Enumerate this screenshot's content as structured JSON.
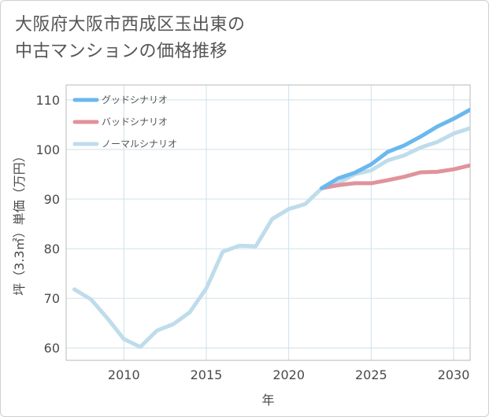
{
  "title_lines": [
    "大阪府大阪市西成区玉出東の",
    "中古マンションの価格推移"
  ],
  "chart_data": {
    "type": "line",
    "title": "大阪府大阪市西成区玉出東の中古マンションの価格推移",
    "xlabel": "年",
    "ylabel": "坪（3.3㎡）単価（万円）",
    "xlim": [
      2006.5,
      2031
    ],
    "ylim": [
      57.5,
      113
    ],
    "xticks": [
      2010,
      2015,
      2020,
      2025,
      2030
    ],
    "yticks": [
      60,
      70,
      80,
      90,
      100,
      110
    ],
    "grid": true,
    "legend_position": "top-left",
    "series": [
      {
        "name": "グッドシナリオ",
        "color": "#6bb8ee",
        "x": [
          2022,
          2023,
          2024,
          2025,
          2026,
          2027,
          2028,
          2029,
          2030,
          2031
        ],
        "y": [
          92.2,
          94.2,
          95.3,
          97.0,
          99.5,
          100.8,
          102.6,
          104.6,
          106.2,
          108.0
        ]
      },
      {
        "name": "バッドシナリオ",
        "color": "#e0939b",
        "x": [
          2022,
          2023,
          2024,
          2025,
          2026,
          2027,
          2028,
          2029,
          2030,
          2031
        ],
        "y": [
          92.2,
          92.8,
          93.2,
          93.2,
          93.8,
          94.5,
          95.4,
          95.5,
          96.0,
          96.8
        ]
      },
      {
        "name": "ノーマルシナリオ",
        "color": "#bfdceb",
        "x": [
          2007,
          2008,
          2009,
          2010,
          2011,
          2012,
          2013,
          2014,
          2015,
          2016,
          2017,
          2018,
          2019,
          2020,
          2021,
          2022,
          2023,
          2024,
          2025,
          2026,
          2027,
          2028,
          2029,
          2030,
          2031
        ],
        "y": [
          71.8,
          69.8,
          66.0,
          61.8,
          60.2,
          63.5,
          64.8,
          67.2,
          72.0,
          79.4,
          80.6,
          80.5,
          86.0,
          88.0,
          89.0,
          92.2,
          93.2,
          95.0,
          95.8,
          97.8,
          98.8,
          100.4,
          101.5,
          103.2,
          104.3
        ]
      }
    ]
  }
}
